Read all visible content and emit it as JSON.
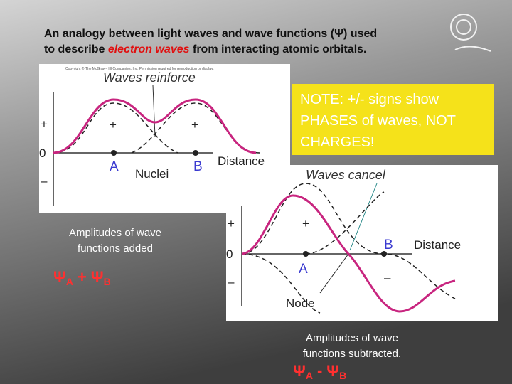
{
  "title": {
    "line1": "An analogy between light waves and wave functions (Ψ) used",
    "line2_before": "to describe ",
    "line2_highlight": "electron waves",
    "line2_after": " from interacting atomic orbitals."
  },
  "note": {
    "line1": "NOTE: +/- signs show",
    "line2": "PHASES of waves, NOT",
    "line3": "CHARGES!"
  },
  "figure_reinforce": {
    "copyright": "Copyright © The McGraw-Hill Companies, Inc. Permission required for reproduction or display.",
    "heading": "Waves reinforce",
    "axis_plus": "+",
    "axis_zero": "0",
    "axis_minus": "–",
    "sign_left": "+",
    "sign_right": "+",
    "nucleus_a": "A",
    "nuclei": "Nuclei",
    "nucleus_b": "B",
    "axis_label": "Distance"
  },
  "caption_added": {
    "line1": "Amplitudes of wave",
    "line2": "functions added"
  },
  "formula_added": {
    "psi_a": "Ψ",
    "sub_a": "A",
    "operator": "+",
    "psi_b": "Ψ",
    "sub_b": "B"
  },
  "figure_cancel": {
    "heading": "Waves cancel",
    "axis_plus": "+",
    "axis_zero": "0",
    "axis_minus": "–",
    "sign_plus": "+",
    "sign_minus": "–",
    "nucleus_b": "B",
    "nucleus_a": "A",
    "axis_label": "Distance",
    "node": "Node"
  },
  "caption_subtracted": {
    "line1": "Amplitudes of wave",
    "line2": "functions subtracted."
  },
  "formula_subtracted": {
    "psi_a": "Ψ",
    "sub_a": "A",
    "operator": "-",
    "psi_b": "Ψ",
    "sub_b": "B"
  }
}
